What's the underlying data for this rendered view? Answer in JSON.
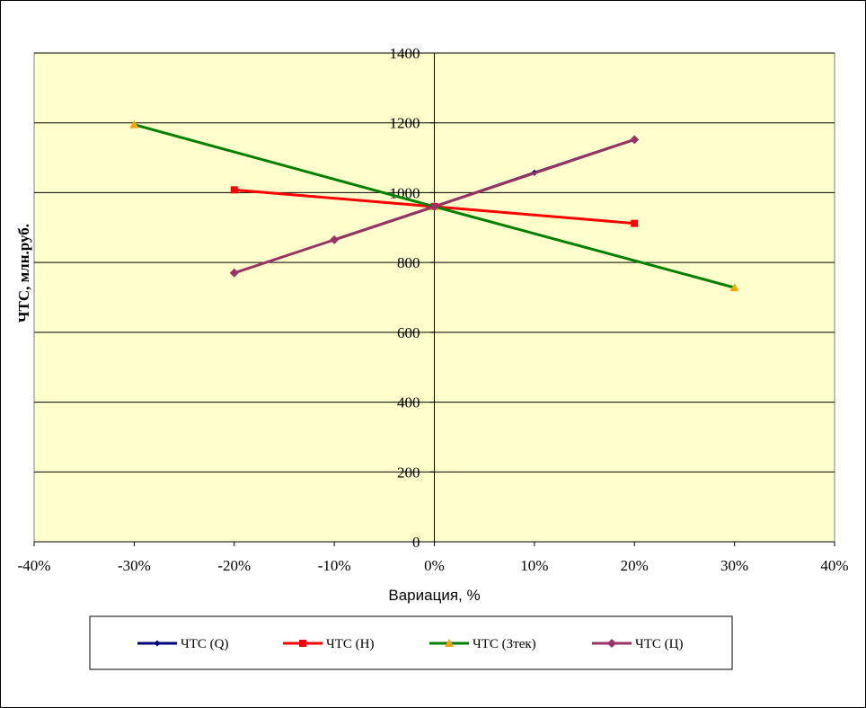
{
  "chart_data": {
    "type": "line",
    "title": "",
    "xlabel": "Вариация, %",
    "ylabel": "ЧТС, млн.руб.",
    "xlim": [
      -40,
      40
    ],
    "ylim": [
      0,
      1400
    ],
    "x_ticks": [
      "-40%",
      "-30%",
      "-20%",
      "-10%",
      "0%",
      "10%",
      "20%",
      "30%",
      "40%"
    ],
    "y_ticks": [
      "0",
      "200",
      "400",
      "600",
      "800",
      "1000",
      "1200",
      "1400"
    ],
    "grid": "horizontal",
    "legend_position": "bottom",
    "plot_background": "#FFFFCC",
    "series": [
      {
        "name": "ЧТС (Q)",
        "color": "#000080",
        "marker": "diamond-small",
        "points": [
          [
            -10,
            865
          ],
          [
            0,
            960
          ],
          [
            10,
            1057
          ],
          [
            20,
            1152
          ]
        ]
      },
      {
        "name": "ЧТС (Н)",
        "color": "#FF0000",
        "marker": "square",
        "points": [
          [
            -20,
            1008
          ],
          [
            0,
            960
          ],
          [
            20,
            912
          ]
        ]
      },
      {
        "name": "ЧТС (Зтек)",
        "color": "#008000",
        "marker": "triangle",
        "marker_color": "#FFA500",
        "points": [
          [
            -30,
            1195
          ],
          [
            0,
            960
          ],
          [
            30,
            728
          ]
        ]
      },
      {
        "name": "ЧТС (Ц)",
        "color": "#993366",
        "marker": "diamond",
        "points": [
          [
            -20,
            770
          ],
          [
            -10,
            865
          ],
          [
            0,
            960
          ],
          [
            20,
            1152
          ]
        ]
      }
    ]
  }
}
